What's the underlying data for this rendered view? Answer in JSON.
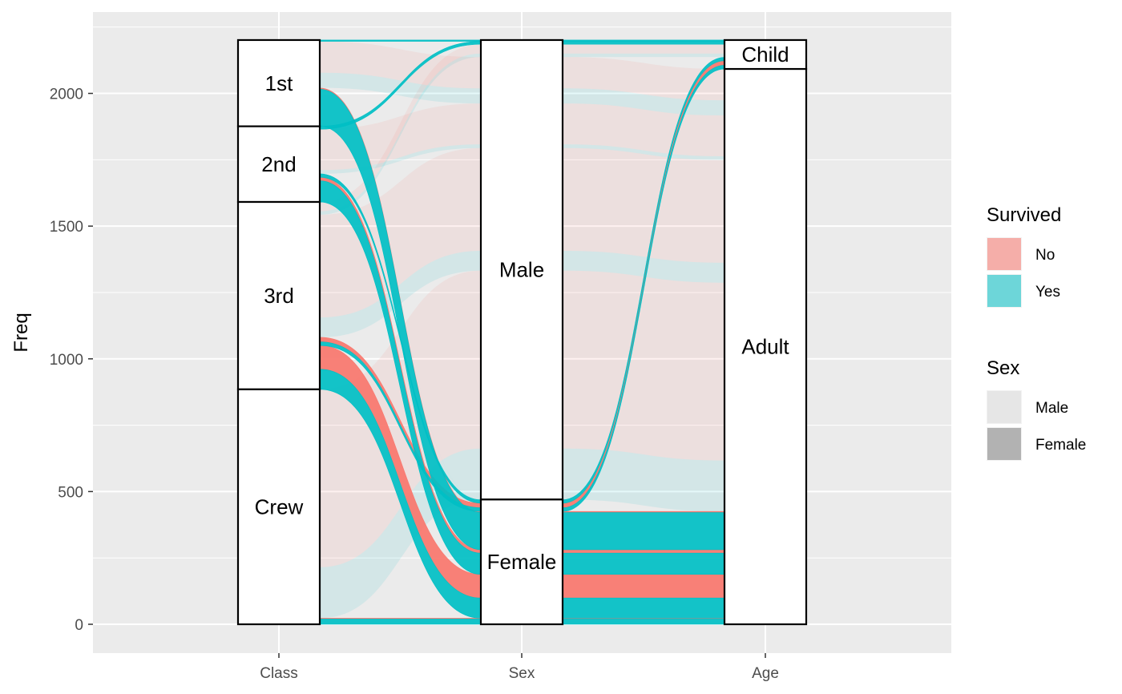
{
  "chart_data": {
    "type": "alluvial",
    "title": "",
    "xlabel": "",
    "ylabel": "Freq",
    "ylim": [
      0,
      2201
    ],
    "yticks": [
      0,
      500,
      1000,
      1500,
      2000
    ],
    "grid": true,
    "legend_position": "right",
    "axes": [
      {
        "name": "Class",
        "strata": [
          {
            "label": "1st",
            "value": 325
          },
          {
            "label": "2nd",
            "value": 285
          },
          {
            "label": "3rd",
            "value": 706
          },
          {
            "label": "Crew",
            "value": 885
          }
        ]
      },
      {
        "name": "Sex",
        "strata": [
          {
            "label": "Male",
            "value": 1731
          },
          {
            "label": "Female",
            "value": 470
          }
        ]
      },
      {
        "name": "Age",
        "strata": [
          {
            "label": "Child",
            "value": 109
          },
          {
            "label": "Adult",
            "value": 2092
          }
        ]
      }
    ],
    "flows": [
      {
        "Class": "1st",
        "Sex": "Male",
        "Age": "Child",
        "Survived": "No",
        "Freq": 0
      },
      {
        "Class": "2nd",
        "Sex": "Male",
        "Age": "Child",
        "Survived": "No",
        "Freq": 0
      },
      {
        "Class": "3rd",
        "Sex": "Male",
        "Age": "Child",
        "Survived": "No",
        "Freq": 35
      },
      {
        "Class": "Crew",
        "Sex": "Male",
        "Age": "Child",
        "Survived": "No",
        "Freq": 0
      },
      {
        "Class": "1st",
        "Sex": "Female",
        "Age": "Child",
        "Survived": "No",
        "Freq": 0
      },
      {
        "Class": "2nd",
        "Sex": "Female",
        "Age": "Child",
        "Survived": "No",
        "Freq": 0
      },
      {
        "Class": "3rd",
        "Sex": "Female",
        "Age": "Child",
        "Survived": "No",
        "Freq": 17
      },
      {
        "Class": "Crew",
        "Sex": "Female",
        "Age": "Child",
        "Survived": "No",
        "Freq": 0
      },
      {
        "Class": "1st",
        "Sex": "Male",
        "Age": "Adult",
        "Survived": "No",
        "Freq": 118
      },
      {
        "Class": "2nd",
        "Sex": "Male",
        "Age": "Adult",
        "Survived": "No",
        "Freq": 154
      },
      {
        "Class": "3rd",
        "Sex": "Male",
        "Age": "Adult",
        "Survived": "No",
        "Freq": 387
      },
      {
        "Class": "Crew",
        "Sex": "Male",
        "Age": "Adult",
        "Survived": "No",
        "Freq": 670
      },
      {
        "Class": "1st",
        "Sex": "Female",
        "Age": "Adult",
        "Survived": "No",
        "Freq": 4
      },
      {
        "Class": "2nd",
        "Sex": "Female",
        "Age": "Adult",
        "Survived": "No",
        "Freq": 13
      },
      {
        "Class": "3rd",
        "Sex": "Female",
        "Age": "Adult",
        "Survived": "No",
        "Freq": 89
      },
      {
        "Class": "Crew",
        "Sex": "Female",
        "Age": "Adult",
        "Survived": "No",
        "Freq": 3
      },
      {
        "Class": "1st",
        "Sex": "Male",
        "Age": "Child",
        "Survived": "Yes",
        "Freq": 5
      },
      {
        "Class": "2nd",
        "Sex": "Male",
        "Age": "Child",
        "Survived": "Yes",
        "Freq": 11
      },
      {
        "Class": "3rd",
        "Sex": "Male",
        "Age": "Child",
        "Survived": "Yes",
        "Freq": 13
      },
      {
        "Class": "Crew",
        "Sex": "Male",
        "Age": "Child",
        "Survived": "Yes",
        "Freq": 0
      },
      {
        "Class": "1st",
        "Sex": "Female",
        "Age": "Child",
        "Survived": "Yes",
        "Freq": 1
      },
      {
        "Class": "2nd",
        "Sex": "Female",
        "Age": "Child",
        "Survived": "Yes",
        "Freq": 13
      },
      {
        "Class": "3rd",
        "Sex": "Female",
        "Age": "Child",
        "Survived": "Yes",
        "Freq": 14
      },
      {
        "Class": "Crew",
        "Sex": "Female",
        "Age": "Child",
        "Survived": "Yes",
        "Freq": 0
      },
      {
        "Class": "1st",
        "Sex": "Male",
        "Age": "Adult",
        "Survived": "Yes",
        "Freq": 57
      },
      {
        "Class": "2nd",
        "Sex": "Male",
        "Age": "Adult",
        "Survived": "Yes",
        "Freq": 14
      },
      {
        "Class": "3rd",
        "Sex": "Male",
        "Age": "Adult",
        "Survived": "Yes",
        "Freq": 75
      },
      {
        "Class": "Crew",
        "Sex": "Male",
        "Age": "Adult",
        "Survived": "Yes",
        "Freq": 192
      },
      {
        "Class": "1st",
        "Sex": "Female",
        "Age": "Adult",
        "Survived": "Yes",
        "Freq": 140
      },
      {
        "Class": "2nd",
        "Sex": "Female",
        "Age": "Adult",
        "Survived": "Yes",
        "Freq": 80
      },
      {
        "Class": "3rd",
        "Sex": "Female",
        "Age": "Adult",
        "Survived": "Yes",
        "Freq": 76
      },
      {
        "Class": "Crew",
        "Sex": "Female",
        "Age": "Adult",
        "Survived": "Yes",
        "Freq": 20
      }
    ],
    "highlighted_flows": [
      {
        "Class": "1st",
        "Sex": "Female",
        "Age": "Adult",
        "Survived": "Yes"
      },
      {
        "Class": "2nd",
        "Sex": "Female",
        "Age": "Adult",
        "Survived": "Yes"
      },
      {
        "Class": "3rd",
        "Sex": "Female",
        "Age": "Adult",
        "Survived": "No"
      },
      {
        "Class": "3rd",
        "Sex": "Female",
        "Age": "Adult",
        "Survived": "Yes"
      },
      {
        "Class": "Crew",
        "Sex": "Female",
        "Age": "Adult",
        "Survived": "Yes"
      },
      {
        "Class": "3rd",
        "Sex": "Female",
        "Age": "Child",
        "Survived": "No"
      },
      {
        "Class": "1st",
        "Sex": "Male",
        "Age": "Child",
        "Survived": "Yes"
      },
      {
        "Class": "2nd",
        "Sex": "Male",
        "Age": "Child",
        "Survived": "Yes"
      },
      {
        "Class": "2nd",
        "Sex": "Female",
        "Age": "Child",
        "Survived": "Yes"
      },
      {
        "Class": "3rd",
        "Sex": "Female",
        "Age": "Child",
        "Survived": "Yes"
      },
      {
        "Class": "1st",
        "Sex": "Female",
        "Age": "Adult",
        "Survived": "No"
      },
      {
        "Class": "2nd",
        "Sex": "Female",
        "Age": "Adult",
        "Survived": "No"
      },
      {
        "Class": "Crew",
        "Sex": "Female",
        "Age": "Adult",
        "Survived": "No"
      }
    ],
    "legends": [
      {
        "title": "Survived",
        "entries": [
          {
            "label": "No",
            "color": "#F8766D"
          },
          {
            "label": "Yes",
            "color": "#00BFC4"
          }
        ]
      },
      {
        "title": "Sex",
        "entries": [
          {
            "label": "Male",
            "color": "#e6e6e6"
          },
          {
            "label": "Female",
            "color": "#b2b2b2"
          }
        ]
      }
    ],
    "colors": {
      "No": "#F8766D",
      "Yes": "#00BFC4",
      "panel": "#ebebeb",
      "grid": "#ffffff",
      "stratum_fill": "#ffffff",
      "stratum_border": "#000000"
    }
  }
}
